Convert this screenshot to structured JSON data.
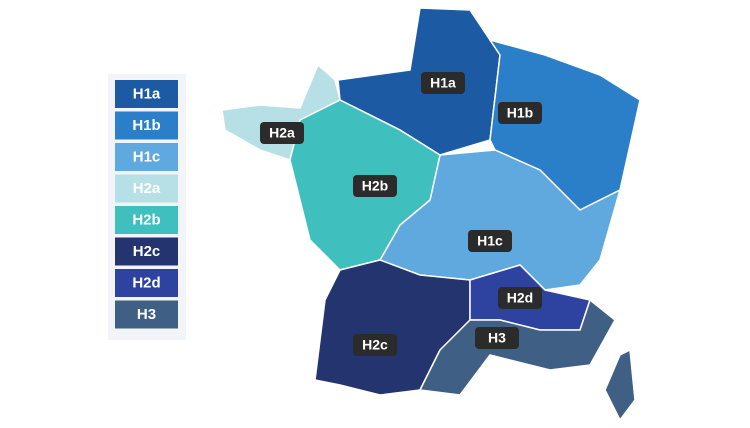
{
  "zones": [
    {
      "label": "H1a",
      "color": "#1d5aa4"
    },
    {
      "label": "H1b",
      "color": "#2a7fc8"
    },
    {
      "label": "H1c",
      "color": "#5fa9de"
    },
    {
      "label": "H2a",
      "color": "#b6e0e6"
    },
    {
      "label": "H2b",
      "color": "#40bfbf"
    },
    {
      "label": "H2c",
      "color": "#24346e"
    },
    {
      "label": "H2d",
      "color": "#2e42a0"
    },
    {
      "label": "H3",
      "color": "#3f5f85"
    }
  ]
}
